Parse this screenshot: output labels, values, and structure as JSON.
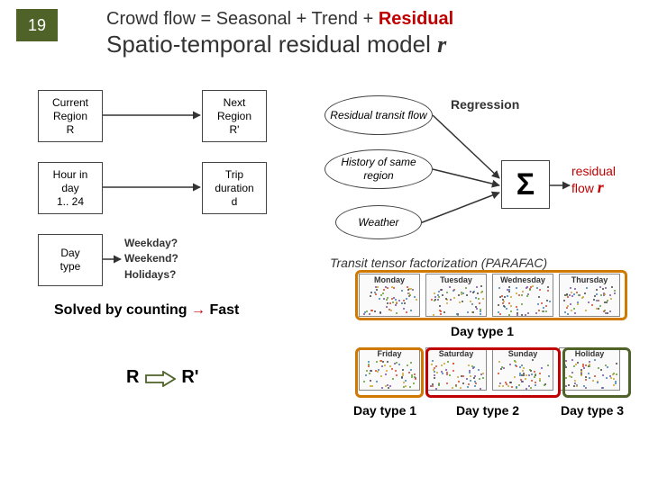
{
  "slide_number": "19",
  "title_line1_a": "Crowd flow = Seasonal + Trend + ",
  "title_line1_b": "Residual",
  "title_line2_a": "Spatio-temporal residual model ",
  "title_line2_b": "r",
  "inputs": {
    "region": "Current\nRegion\nR",
    "nextreg": "Next\nRegion\nR'",
    "hour": "Hour in\nday\n1.. 24",
    "trip": "Trip\nduration\nd",
    "daytype": "Day\ntype",
    "daytype_q": "Weekday?\nWeekend?\nHolidays?"
  },
  "ovals": {
    "transit": "Residual\ntransit flow",
    "history": "History of\nsame region",
    "weather": "Weather"
  },
  "labels": {
    "regression": "Regression",
    "residual_a": "residual",
    "residual_b": "flow ",
    "residual_c": "r",
    "solved": "Solved by counting ",
    "solved_arrow": "→",
    "fast": " Fast",
    "parafac": "Transit tensor factorization (PARAFAC)",
    "R": "R",
    "Rprime": "R'",
    "dt1": "Day type 1",
    "dt1b": "Day type 1",
    "dt2": "Day type 2",
    "dt3": "Day type 3"
  },
  "sigma": "Σ",
  "panels": {
    "row1": [
      "Monday",
      "Tuesday",
      "Wednesday",
      "Thursday"
    ],
    "row2": [
      "Friday",
      "Saturday",
      "Sunday",
      "Holiday"
    ],
    "w": 68,
    "h": 48
  },
  "colors": {
    "slidenum_bg": "#4f6228",
    "red": "#c00000",
    "group1": "#d07800",
    "group2": "#c00000",
    "group3": "#4f6228",
    "scatter": [
      "#d4452a",
      "#3b7fb5",
      "#5aa02c",
      "#caa32b",
      "#7a4fa3",
      "#444"
    ]
  },
  "scatter": {
    "n": 60
  }
}
